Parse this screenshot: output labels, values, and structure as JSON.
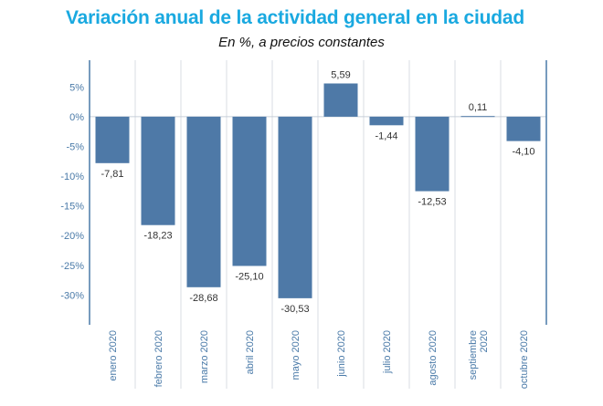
{
  "chart_data": {
    "type": "bar",
    "title": "Variación anual de la actividad general en la ciudad",
    "subtitle": "En %, a precios constantes",
    "categories": [
      "enero 2020",
      "febrero 2020",
      "marzo 2020",
      "abril 2020",
      "mayo 2020",
      "junio 2020",
      "julio 2020",
      "agosto 2020",
      "septiembre 2020",
      "octubre 2020"
    ],
    "category_lines": [
      [
        "enero 2020"
      ],
      [
        "febrero 2020"
      ],
      [
        "marzo 2020"
      ],
      [
        "abril 2020"
      ],
      [
        "mayo 2020"
      ],
      [
        "junio 2020"
      ],
      [
        "julio 2020"
      ],
      [
        "agosto 2020"
      ],
      [
        "septiembre",
        "2020"
      ],
      [
        "octubre 2020"
      ]
    ],
    "values": [
      -7.81,
      -18.23,
      -28.68,
      -25.1,
      -30.53,
      5.59,
      -1.44,
      -12.53,
      0.11,
      -4.1
    ],
    "value_labels": [
      "-7,81",
      "-18,23",
      "-28,68",
      "-25,10",
      "-30,53",
      "5,59",
      "-1,44",
      "-12,53",
      "0,11",
      "-4,10"
    ],
    "yticks": [
      5,
      0,
      -5,
      -10,
      -15,
      -20,
      -25,
      -30
    ],
    "ytick_labels": [
      "5%",
      "0%",
      "-5%",
      "-10%",
      "-15%",
      "-20%",
      "-25%",
      "-30%"
    ],
    "ylim": [
      -35,
      9.5
    ],
    "xlabel": "",
    "ylabel": "",
    "grid": false,
    "colors": {
      "bar": "#4e79a7",
      "title": "#1aa9e0",
      "axis": "#4a7aa8",
      "zero_line": "#c7cfd9",
      "divider": "#d8dde3"
    }
  }
}
